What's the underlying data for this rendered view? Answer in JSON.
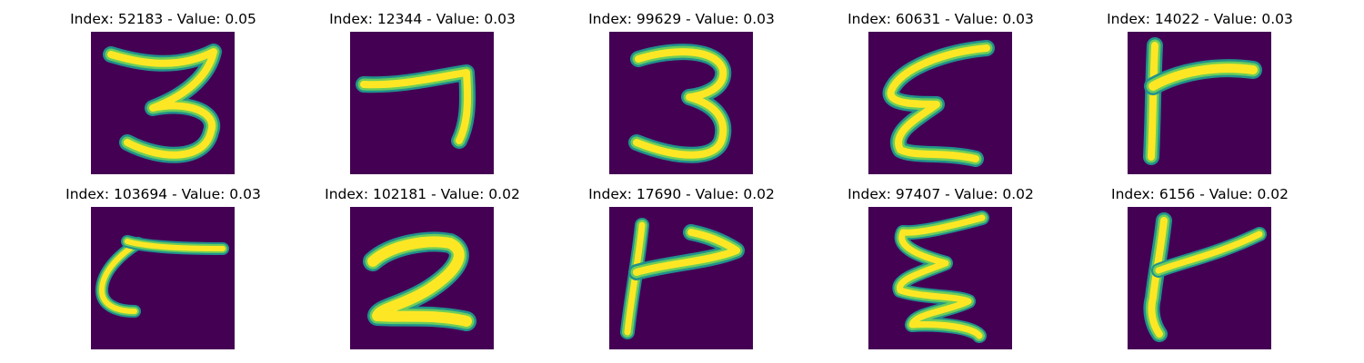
{
  "panel_bg": "#440154",
  "stroke_colors": {
    "core": "#fde725",
    "mid": "#6ccd5a",
    "edge": "#21918c"
  },
  "panels": [
    {
      "title": "Index: 52183 - Value: 0.05",
      "index": 52183,
      "value": 0.05,
      "glyph": "3-top-hook"
    },
    {
      "title": "Index: 12344 - Value: 0.03",
      "index": 12344,
      "value": 0.03,
      "glyph": "7-shape"
    },
    {
      "title": "Index: 99629 - Value: 0.03",
      "index": 99629,
      "value": 0.03,
      "glyph": "3-round"
    },
    {
      "title": "Index: 60631 - Value: 0.03",
      "index": 60631,
      "value": 0.03,
      "glyph": "zigzag-3-wave"
    },
    {
      "title": "Index: 14022 - Value: 0.03",
      "index": 14022,
      "value": 0.03,
      "glyph": "r-shape-flag"
    },
    {
      "title": "Index: 103694 - Value: 0.03",
      "index": 103694,
      "value": 0.03,
      "glyph": "hook-c-with-line"
    },
    {
      "title": "Index: 102181 - Value: 0.02",
      "index": 102181,
      "value": 0.02,
      "glyph": "2-shape"
    },
    {
      "title": "Index: 17690 - Value: 0.02",
      "index": 17690,
      "value": 0.02,
      "glyph": "p-flag-shape"
    },
    {
      "title": "Index: 97407 - Value: 0.02",
      "index": 97407,
      "value": 0.02,
      "glyph": "zigzag-3-wave-tall"
    },
    {
      "title": "Index: 6156 - Value: 0.02",
      "index": 6156,
      "value": 0.02,
      "glyph": "r-shape-flag-tilted"
    }
  ]
}
